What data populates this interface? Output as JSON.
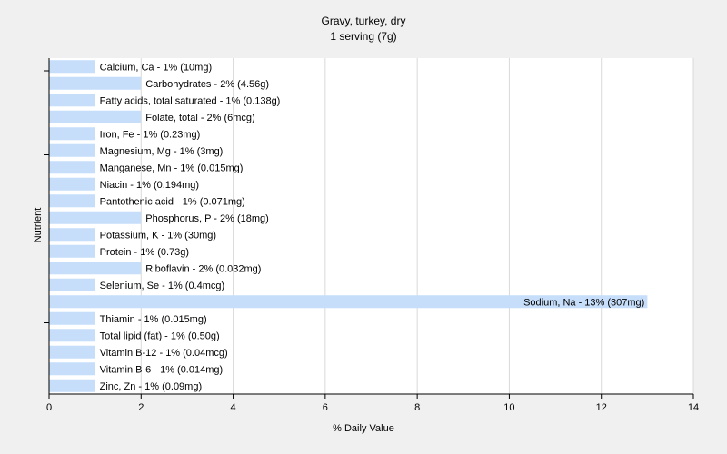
{
  "chart_data": {
    "type": "bar",
    "orientation": "horizontal",
    "title": "Gravy, turkey, dry",
    "subtitle": "1 serving (7g)",
    "xlabel": "% Daily Value",
    "ylabel": "Nutrient",
    "xlim": [
      0,
      14
    ],
    "xticks": [
      0,
      2,
      4,
      6,
      8,
      10,
      12,
      14
    ],
    "grid": true,
    "bar_color": "#c6defa",
    "categories": [
      "Calcium, Ca",
      "Carbohydrates",
      "Fatty acids, total saturated",
      "Folate, total",
      "Iron, Fe",
      "Magnesium, Mg",
      "Manganese, Mn",
      "Niacin",
      "Pantothenic acid",
      "Phosphorus, P",
      "Potassium, K",
      "Protein",
      "Riboflavin",
      "Selenium, Se",
      "Sodium, Na",
      "Thiamin",
      "Total lipid (fat)",
      "Vitamin B-12",
      "Vitamin B-6",
      "Zinc, Zn"
    ],
    "values": [
      1,
      2,
      1,
      2,
      1,
      1,
      1,
      1,
      1,
      2,
      1,
      1,
      2,
      1,
      13,
      1,
      1,
      1,
      1,
      1
    ],
    "labels": [
      "Calcium, Ca - 1% (10mg)",
      "Carbohydrates - 2% (4.56g)",
      "Fatty acids, total saturated - 1% (0.138g)",
      "Folate, total - 2% (6mcg)",
      "Iron, Fe - 1% (0.23mg)",
      "Magnesium, Mg - 1% (3mg)",
      "Manganese, Mn - 1% (0.015mg)",
      "Niacin - 1% (0.194mg)",
      "Pantothenic acid - 1% (0.071mg)",
      "Phosphorus, P - 2% (18mg)",
      "Potassium, K - 1% (30mg)",
      "Protein - 1% (0.73g)",
      "Riboflavin - 2% (0.032mg)",
      "Selenium, Se - 1% (0.4mcg)",
      "Sodium, Na - 13% (307mg)",
      "Thiamin - 1% (0.015mg)",
      "Total lipid (fat) - 1% (0.50g)",
      "Vitamin B-12 - 1% (0.04mcg)",
      "Vitamin B-6 - 1% (0.014mg)",
      "Zinc, Zn - 1% (0.09mg)"
    ]
  }
}
